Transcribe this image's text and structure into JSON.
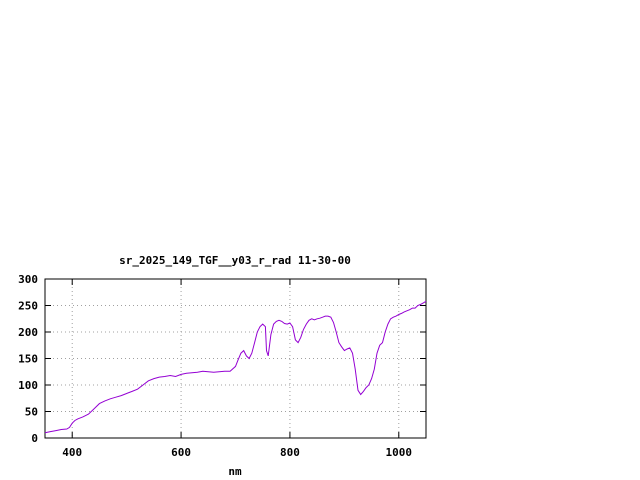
{
  "chart_data": {
    "type": "line",
    "title": "sr_2025_149_TGF__y03_r_rad 11-30-00",
    "xlabel": "nm",
    "ylabel": "",
    "xlim": [
      350,
      1050
    ],
    "ylim": [
      0,
      300
    ],
    "xticks": [
      400,
      600,
      800,
      1000
    ],
    "yticks": [
      0,
      50,
      100,
      150,
      200,
      250,
      300
    ],
    "grid": true,
    "series": [
      {
        "color": "#9400d3",
        "x": [
          350,
          360,
          370,
          380,
          390,
          395,
          400,
          405,
          410,
          420,
          430,
          440,
          450,
          460,
          470,
          480,
          490,
          500,
          510,
          520,
          530,
          540,
          550,
          560,
          570,
          580,
          590,
          600,
          610,
          620,
          630,
          640,
          650,
          660,
          670,
          680,
          690,
          700,
          705,
          710,
          715,
          720,
          725,
          730,
          735,
          740,
          745,
          750,
          755,
          757,
          760,
          765,
          770,
          775,
          780,
          785,
          790,
          795,
          800,
          805,
          810,
          815,
          820,
          825,
          830,
          835,
          840,
          845,
          850,
          855,
          860,
          865,
          870,
          875,
          880,
          885,
          890,
          895,
          900,
          905,
          910,
          915,
          920,
          925,
          930,
          935,
          940,
          945,
          950,
          955,
          960,
          965,
          970,
          975,
          980,
          985,
          990,
          995,
          1000,
          1005,
          1010,
          1015,
          1020,
          1025,
          1030,
          1035,
          1040,
          1045,
          1050
        ],
        "y": [
          10,
          12,
          14,
          16,
          17,
          20,
          28,
          33,
          36,
          40,
          45,
          55,
          65,
          70,
          74,
          77,
          80,
          84,
          88,
          92,
          100,
          108,
          112,
          115,
          116,
          118,
          116,
          120,
          122,
          123,
          124,
          126,
          125,
          124,
          125,
          126,
          126,
          135,
          148,
          160,
          165,
          155,
          150,
          160,
          180,
          200,
          210,
          215,
          210,
          165,
          155,
          195,
          215,
          220,
          222,
          220,
          216,
          215,
          217,
          210,
          185,
          180,
          190,
          205,
          215,
          222,
          225,
          223,
          225,
          226,
          228,
          230,
          230,
          228,
          218,
          200,
          180,
          172,
          165,
          168,
          170,
          160,
          130,
          90,
          82,
          88,
          95,
          100,
          112,
          130,
          160,
          175,
          180,
          200,
          215,
          225,
          228,
          230,
          233,
          235,
          238,
          240,
          242,
          245,
          245,
          250,
          252,
          255,
          258
        ]
      }
    ]
  }
}
